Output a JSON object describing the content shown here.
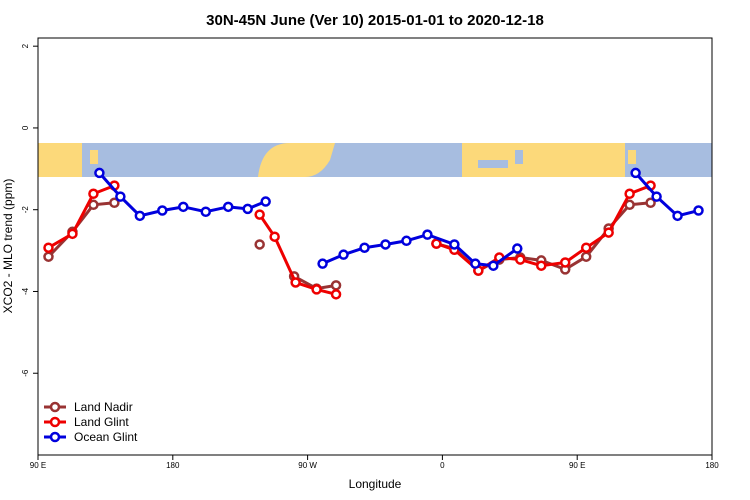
{
  "chart_data": {
    "type": "line",
    "title": "30N-45N June (Ver 10)   2015-01-01 to 2020-12-18",
    "x_label": "Longitude",
    "y_label": "XCO2 - MLO trend (ppm)",
    "xlim": [
      90,
      540
    ],
    "ylim": [
      -8,
      2.2
    ],
    "xticks": [
      {
        "value": 90,
        "label": "90 E"
      },
      180,
      {
        "value": 270,
        "label": "90 W"
      },
      {
        "value": 360,
        "label": "0"
      },
      {
        "value": 450,
        "label": "90 E"
      },
      {
        "value": 540,
        "label": "180"
      }
    ],
    "yticks": [
      -6,
      -4,
      -2,
      0,
      2
    ],
    "legend": "bottom-left",
    "series": [
      {
        "name": "Land Nadir",
        "color": "#993333",
        "x": [
          97,
          113,
          127,
          141,
          null,
          238,
          null,
          261,
          276,
          289,
          null,
          356,
          368,
          384,
          398,
          412,
          426,
          442,
          456,
          471,
          485,
          499
        ],
        "values": [
          -3.15,
          -2.54,
          -1.88,
          -1.83,
          null,
          -2.85,
          null,
          -3.63,
          -3.93,
          -3.85,
          null,
          -2.83,
          -2.95,
          -3.49,
          -3.22,
          -3.17,
          -3.24,
          -3.46,
          -3.15,
          -2.46,
          -1.88,
          -1.83
        ]
      },
      {
        "name": "Land Glint",
        "color": "#ee0000",
        "x": [
          97,
          113,
          127,
          141,
          null,
          238,
          248,
          262,
          276,
          289,
          null,
          356,
          368,
          384,
          398,
          412,
          426,
          442,
          456,
          471,
          485,
          499
        ],
        "values": [
          -2.93,
          -2.59,
          -1.61,
          -1.41,
          null,
          -2.12,
          -2.66,
          -3.78,
          -3.95,
          -4.07,
          null,
          -2.83,
          -2.98,
          -3.49,
          -3.17,
          -3.22,
          -3.37,
          -3.29,
          -2.93,
          -2.56,
          -1.61,
          -1.41
        ]
      },
      {
        "name": "Ocean Glint",
        "color": "#0000dd",
        "x": [
          131,
          145,
          158,
          173,
          187,
          202,
          217,
          230,
          242,
          null,
          280,
          294,
          308,
          322,
          336,
          350,
          368,
          382,
          394,
          410,
          null,
          489,
          503,
          517,
          531
        ],
        "values": [
          -1.1,
          -1.68,
          -2.15,
          -2.02,
          -1.93,
          -2.05,
          -1.93,
          -1.98,
          -1.8,
          null,
          -3.32,
          -3.1,
          -2.93,
          -2.85,
          -2.76,
          -2.61,
          -2.85,
          -3.32,
          -3.37,
          -2.95,
          null,
          -1.1,
          -1.68,
          -2.15,
          -2.02
        ]
      }
    ]
  }
}
